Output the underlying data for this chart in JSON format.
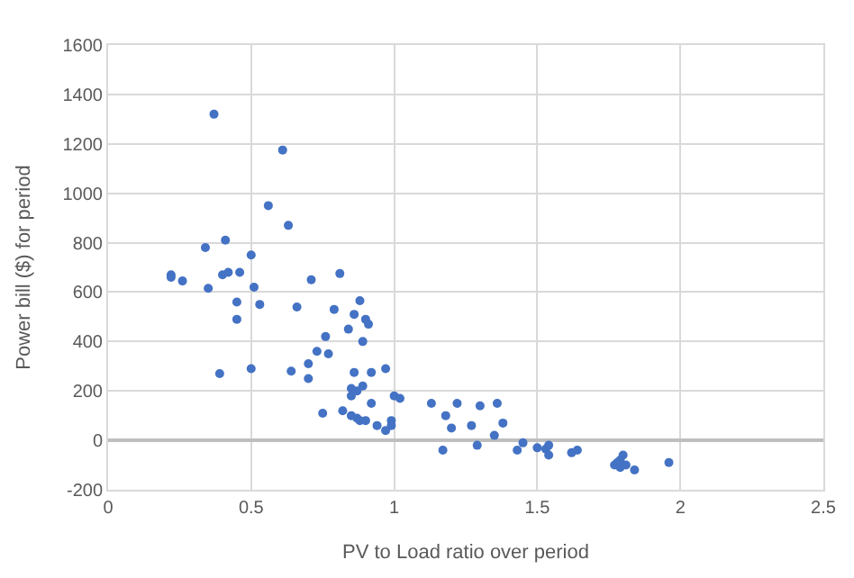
{
  "chart_data": {
    "type": "scatter",
    "xlabel": "PV to Load ratio over period",
    "ylabel": "Power bill ($) for period",
    "x": [
      0.37,
      0.61,
      0.56,
      0.63,
      0.41,
      0.34,
      0.5,
      0.22,
      0.22,
      0.26,
      0.4,
      0.42,
      0.46,
      0.35,
      0.51,
      0.71,
      0.81,
      0.45,
      0.53,
      0.66,
      0.45,
      0.79,
      0.88,
      0.86,
      0.84,
      0.9,
      0.91,
      0.89,
      0.76,
      0.73,
      0.77,
      0.7,
      0.7,
      0.39,
      0.5,
      0.64,
      0.86,
      0.92,
      0.97,
      0.85,
      0.87,
      0.89,
      0.85,
      0.92,
      0.82,
      0.85,
      0.87,
      0.88,
      0.9,
      0.94,
      0.97,
      0.75,
      0.99,
      0.99,
      1.0,
      1.02,
      1.13,
      1.18,
      1.22,
      1.3,
      1.36,
      1.2,
      1.27,
      1.29,
      1.35,
      1.38,
      1.17,
      1.43,
      1.45,
      1.5,
      1.53,
      1.54,
      1.54,
      1.62,
      1.64,
      1.77,
      1.79,
      1.8,
      1.79,
      1.78,
      1.81,
      1.84,
      1.96
    ],
    "values": [
      1320,
      1175,
      950,
      870,
      810,
      780,
      750,
      670,
      660,
      645,
      670,
      680,
      680,
      615,
      620,
      650,
      675,
      560,
      550,
      540,
      490,
      530,
      565,
      510,
      450,
      490,
      470,
      400,
      420,
      360,
      350,
      310,
      250,
      270,
      290,
      280,
      275,
      275,
      290,
      210,
      200,
      220,
      180,
      150,
      120,
      100,
      90,
      80,
      80,
      60,
      40,
      110,
      80,
      60,
      180,
      170,
      150,
      100,
      150,
      140,
      150,
      50,
      60,
      -20,
      20,
      70,
      -40,
      -40,
      -10,
      -30,
      -35,
      -20,
      -60,
      -50,
      -40,
      -100,
      -80,
      -60,
      -110,
      -90,
      -100,
      -120,
      -90
    ],
    "color": "#4472c4",
    "marker": "circle",
    "grid": true,
    "xlim": [
      0,
      2.5
    ],
    "xticks": [
      0,
      0.5,
      1,
      1.5,
      2,
      2.5
    ],
    "ylim": [
      -200,
      1600
    ],
    "yticks": [
      -200,
      0,
      200,
      400,
      600,
      800,
      1000,
      1200,
      1400,
      1600
    ]
  }
}
